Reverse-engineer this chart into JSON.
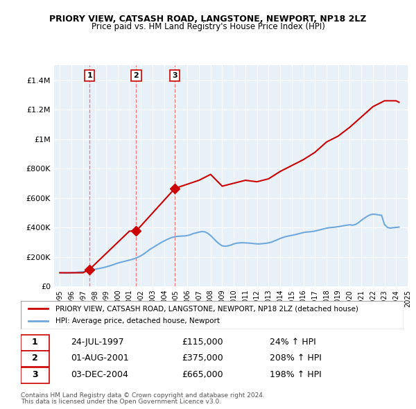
{
  "title": "PRIORY VIEW, CATSASH ROAD, LANGSTONE, NEWPORT, NP18 2LZ",
  "subtitle": "Price paid vs. HM Land Registry's House Price Index (HPI)",
  "legend_line1": "PRIORY VIEW, CATSASH ROAD, LANGSTONE, NEWPORT, NP18 2LZ (detached house)",
  "legend_line2": "HPI: Average price, detached house, Newport",
  "transactions": [
    {
      "num": 1,
      "date_str": "24-JUL-1997",
      "price": 115000,
      "pct": "24%",
      "year": 1997.56
    },
    {
      "num": 2,
      "date_str": "01-AUG-2001",
      "price": 375000,
      "pct": "208%",
      "year": 2001.58
    },
    {
      "num": 3,
      "date_str": "03-DEC-2004",
      "price": 665000,
      "pct": "198%",
      "year": 2004.92
    }
  ],
  "hpi_color": "#6fa8dc",
  "price_color": "#cc0000",
  "dashed_color": "#ff6666",
  "ylim": [
    0,
    1500000
  ],
  "yticks": [
    0,
    200000,
    400000,
    600000,
    800000,
    1000000,
    1200000,
    1400000
  ],
  "ylabel_map": {
    "0": "£0",
    "200000": "£200K",
    "400000": "£400K",
    "600000": "£600K",
    "800000": "£800K",
    "1000000": "£1M",
    "1200000": "£1.2M",
    "1400000": "£1.4M"
  },
  "footer_line1": "Contains HM Land Registry data © Crown copyright and database right 2024.",
  "footer_line2": "This data is licensed under the Open Government Licence v3.0.",
  "hpi_data_x": [
    1995.0,
    1995.25,
    1995.5,
    1995.75,
    1996.0,
    1996.25,
    1996.5,
    1996.75,
    1997.0,
    1997.25,
    1997.5,
    1997.75,
    1998.0,
    1998.25,
    1998.5,
    1998.75,
    1999.0,
    1999.25,
    1999.5,
    1999.75,
    2000.0,
    2000.25,
    2000.5,
    2000.75,
    2001.0,
    2001.25,
    2001.5,
    2001.75,
    2002.0,
    2002.25,
    2002.5,
    2002.75,
    2003.0,
    2003.25,
    2003.5,
    2003.75,
    2004.0,
    2004.25,
    2004.5,
    2004.75,
    2005.0,
    2005.25,
    2005.5,
    2005.75,
    2006.0,
    2006.25,
    2006.5,
    2006.75,
    2007.0,
    2007.25,
    2007.5,
    2007.75,
    2008.0,
    2008.25,
    2008.5,
    2008.75,
    2009.0,
    2009.25,
    2009.5,
    2009.75,
    2010.0,
    2010.25,
    2010.5,
    2010.75,
    2011.0,
    2011.25,
    2011.5,
    2011.75,
    2012.0,
    2012.25,
    2012.5,
    2012.75,
    2013.0,
    2013.25,
    2013.5,
    2013.75,
    2014.0,
    2014.25,
    2014.5,
    2014.75,
    2015.0,
    2015.25,
    2015.5,
    2015.75,
    2016.0,
    2016.25,
    2016.5,
    2016.75,
    2017.0,
    2017.25,
    2017.5,
    2017.75,
    2018.0,
    2018.25,
    2018.5,
    2018.75,
    2019.0,
    2019.25,
    2019.5,
    2019.75,
    2020.0,
    2020.25,
    2020.5,
    2020.75,
    2021.0,
    2021.25,
    2021.5,
    2021.75,
    2022.0,
    2022.25,
    2022.5,
    2022.75,
    2023.0,
    2023.25,
    2023.5,
    2023.75,
    2024.0,
    2024.25
  ],
  "hpi_data_y": [
    92000,
    91000,
    90000,
    91000,
    92000,
    93000,
    95000,
    97000,
    99000,
    102000,
    106000,
    110000,
    115000,
    119000,
    123000,
    127000,
    132000,
    138000,
    144000,
    151000,
    158000,
    163000,
    168000,
    173000,
    178000,
    183000,
    190000,
    198000,
    208000,
    220000,
    235000,
    250000,
    262000,
    274000,
    286000,
    298000,
    308000,
    318000,
    327000,
    334000,
    338000,
    340000,
    341000,
    342000,
    345000,
    350000,
    358000,
    363000,
    368000,
    372000,
    370000,
    360000,
    345000,
    325000,
    305000,
    288000,
    275000,
    272000,
    275000,
    280000,
    288000,
    293000,
    295000,
    296000,
    295000,
    294000,
    292000,
    290000,
    288000,
    288000,
    290000,
    292000,
    295000,
    300000,
    308000,
    316000,
    325000,
    332000,
    338000,
    342000,
    346000,
    350000,
    355000,
    360000,
    365000,
    368000,
    370000,
    372000,
    375000,
    380000,
    385000,
    390000,
    395000,
    398000,
    400000,
    402000,
    405000,
    408000,
    412000,
    415000,
    418000,
    415000,
    420000,
    432000,
    448000,
    462000,
    475000,
    485000,
    490000,
    488000,
    485000,
    482000,
    420000,
    400000,
    395000,
    398000,
    400000,
    402000
  ],
  "price_data_x": [
    1995.0,
    1997.0,
    1997.56,
    1997.56,
    2001.0,
    2001.58,
    2001.58,
    2004.92,
    2004.92,
    2007.0,
    2008.0,
    2009.0,
    2010.0,
    2011.0,
    2012.0,
    2013.0,
    2014.0,
    2015.0,
    2016.0,
    2017.0,
    2018.0,
    2019.0,
    2020.0,
    2021.0,
    2022.0,
    2023.0,
    2024.0,
    2024.25
  ],
  "price_data_y": [
    92000,
    92000,
    115000,
    115000,
    375000,
    375000,
    375000,
    665000,
    665000,
    720000,
    760000,
    680000,
    700000,
    720000,
    710000,
    730000,
    780000,
    820000,
    860000,
    910000,
    980000,
    1020000,
    1080000,
    1150000,
    1220000,
    1260000,
    1260000,
    1250000
  ]
}
